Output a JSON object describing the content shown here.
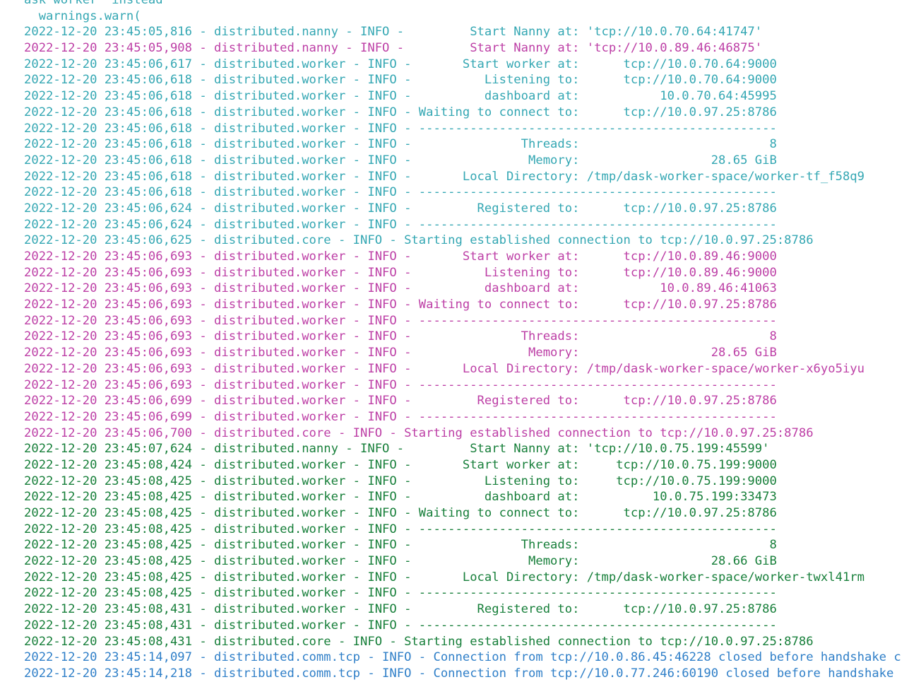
{
  "colors": {
    "background": "#ffffff",
    "plain": "#2f9e76",
    "teal": "#34a7b3",
    "magenta": "#bd3fa6",
    "green": "#177f3a",
    "blue": "#2f7fc8"
  },
  "log_lines": [
    {
      "color": "teal",
      "text": "ask worker  instead"
    },
    {
      "color": "teal",
      "text": "  warnings.warn("
    },
    {
      "color": "teal",
      "text": "2022-12-20 23:45:05,816 - distributed.nanny - INFO -         Start Nanny at: 'tcp://10.0.70.64:41747'"
    },
    {
      "color": "magenta",
      "text": "2022-12-20 23:45:05,908 - distributed.nanny - INFO -         Start Nanny at: 'tcp://10.0.89.46:46875'"
    },
    {
      "color": "teal",
      "text": "2022-12-20 23:45:06,617 - distributed.worker - INFO -       Start worker at:      tcp://10.0.70.64:9000"
    },
    {
      "color": "teal",
      "text": "2022-12-20 23:45:06,618 - distributed.worker - INFO -          Listening to:      tcp://10.0.70.64:9000"
    },
    {
      "color": "teal",
      "text": "2022-12-20 23:45:06,618 - distributed.worker - INFO -          dashboard at:           10.0.70.64:45995"
    },
    {
      "color": "teal",
      "text": "2022-12-20 23:45:06,618 - distributed.worker - INFO - Waiting to connect to:      tcp://10.0.97.25:8786"
    },
    {
      "color": "teal",
      "text": "2022-12-20 23:45:06,618 - distributed.worker - INFO - -------------------------------------------------"
    },
    {
      "color": "teal",
      "text": "2022-12-20 23:45:06,618 - distributed.worker - INFO -               Threads:                          8"
    },
    {
      "color": "teal",
      "text": "2022-12-20 23:45:06,618 - distributed.worker - INFO -                Memory:                  28.65 GiB"
    },
    {
      "color": "teal",
      "text": "2022-12-20 23:45:06,618 - distributed.worker - INFO -       Local Directory: /tmp/dask-worker-space/worker-tf_f58q9"
    },
    {
      "color": "teal",
      "text": "2022-12-20 23:45:06,618 - distributed.worker - INFO - -------------------------------------------------"
    },
    {
      "color": "teal",
      "text": "2022-12-20 23:45:06,624 - distributed.worker - INFO -         Registered to:      tcp://10.0.97.25:8786"
    },
    {
      "color": "teal",
      "text": "2022-12-20 23:45:06,624 - distributed.worker - INFO - -------------------------------------------------"
    },
    {
      "color": "teal",
      "text": "2022-12-20 23:45:06,625 - distributed.core - INFO - Starting established connection to tcp://10.0.97.25:8786"
    },
    {
      "color": "magenta",
      "text": "2022-12-20 23:45:06,693 - distributed.worker - INFO -       Start worker at:      tcp://10.0.89.46:9000"
    },
    {
      "color": "magenta",
      "text": "2022-12-20 23:45:06,693 - distributed.worker - INFO -          Listening to:      tcp://10.0.89.46:9000"
    },
    {
      "color": "magenta",
      "text": "2022-12-20 23:45:06,693 - distributed.worker - INFO -          dashboard at:           10.0.89.46:41063"
    },
    {
      "color": "magenta",
      "text": "2022-12-20 23:45:06,693 - distributed.worker - INFO - Waiting to connect to:      tcp://10.0.97.25:8786"
    },
    {
      "color": "magenta",
      "text": "2022-12-20 23:45:06,693 - distributed.worker - INFO - -------------------------------------------------"
    },
    {
      "color": "magenta",
      "text": "2022-12-20 23:45:06,693 - distributed.worker - INFO -               Threads:                          8"
    },
    {
      "color": "magenta",
      "text": "2022-12-20 23:45:06,693 - distributed.worker - INFO -                Memory:                  28.65 GiB"
    },
    {
      "color": "magenta",
      "text": "2022-12-20 23:45:06,693 - distributed.worker - INFO -       Local Directory: /tmp/dask-worker-space/worker-x6yo5iyu"
    },
    {
      "color": "magenta",
      "text": "2022-12-20 23:45:06,693 - distributed.worker - INFO - -------------------------------------------------"
    },
    {
      "color": "magenta",
      "text": "2022-12-20 23:45:06,699 - distributed.worker - INFO -         Registered to:      tcp://10.0.97.25:8786"
    },
    {
      "color": "magenta",
      "text": "2022-12-20 23:45:06,699 - distributed.worker - INFO - -------------------------------------------------"
    },
    {
      "color": "magenta",
      "text": "2022-12-20 23:45:06,700 - distributed.core - INFO - Starting established connection to tcp://10.0.97.25:8786"
    },
    {
      "color": "green",
      "text": "2022-12-20 23:45:07,624 - distributed.nanny - INFO -         Start Nanny at: 'tcp://10.0.75.199:45599'"
    },
    {
      "color": "green",
      "text": "2022-12-20 23:45:08,424 - distributed.worker - INFO -       Start worker at:     tcp://10.0.75.199:9000"
    },
    {
      "color": "green",
      "text": "2022-12-20 23:45:08,425 - distributed.worker - INFO -          Listening to:     tcp://10.0.75.199:9000"
    },
    {
      "color": "green",
      "text": "2022-12-20 23:45:08,425 - distributed.worker - INFO -          dashboard at:          10.0.75.199:33473"
    },
    {
      "color": "green",
      "text": "2022-12-20 23:45:08,425 - distributed.worker - INFO - Waiting to connect to:      tcp://10.0.97.25:8786"
    },
    {
      "color": "green",
      "text": "2022-12-20 23:45:08,425 - distributed.worker - INFO - -------------------------------------------------"
    },
    {
      "color": "green",
      "text": "2022-12-20 23:45:08,425 - distributed.worker - INFO -               Threads:                          8"
    },
    {
      "color": "green",
      "text": "2022-12-20 23:45:08,425 - distributed.worker - INFO -                Memory:                  28.66 GiB"
    },
    {
      "color": "green",
      "text": "2022-12-20 23:45:08,425 - distributed.worker - INFO -       Local Directory: /tmp/dask-worker-space/worker-twxl41rm"
    },
    {
      "color": "green",
      "text": "2022-12-20 23:45:08,425 - distributed.worker - INFO - -------------------------------------------------"
    },
    {
      "color": "green",
      "text": "2022-12-20 23:45:08,431 - distributed.worker - INFO -         Registered to:      tcp://10.0.97.25:8786"
    },
    {
      "color": "green",
      "text": "2022-12-20 23:45:08,431 - distributed.worker - INFO - -------------------------------------------------"
    },
    {
      "color": "green",
      "text": "2022-12-20 23:45:08,431 - distributed.core - INFO - Starting established connection to tcp://10.0.97.25:8786"
    },
    {
      "color": "blue",
      "text": "2022-12-20 23:45:14,097 - distributed.comm.tcp - INFO - Connection from tcp://10.0.86.45:46228 closed before handshake c"
    },
    {
      "color": "blue",
      "text": "2022-12-20 23:45:14,218 - distributed.comm.tcp - INFO - Connection from tcp://10.0.77.246:60190 closed before handshake"
    }
  ]
}
